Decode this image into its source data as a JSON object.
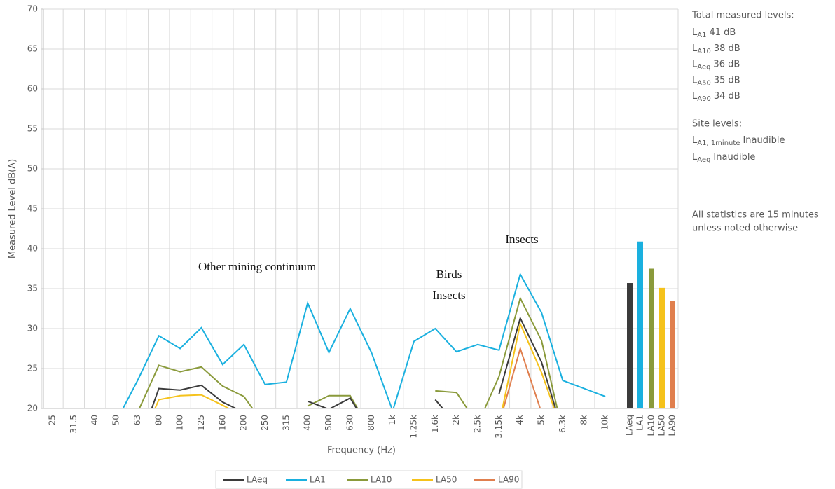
{
  "chart_data": {
    "type": "line",
    "y_label": "Measured Level dB(A)",
    "x_label": "Frequency (Hz)",
    "ylim": [
      20,
      70
    ],
    "yticks": [
      20,
      25,
      30,
      35,
      40,
      45,
      50,
      55,
      60,
      65,
      70
    ],
    "grid": true,
    "categories": [
      "25",
      "31.5",
      "40",
      "50",
      "63",
      "80",
      "100",
      "125",
      "160",
      "200",
      "250",
      "315",
      "400",
      "500",
      "630",
      "800",
      "1k",
      "1.25k",
      "1.6k",
      "2k",
      "2.5k",
      "3.15k",
      "4k",
      "5k",
      "6.3k",
      "8k",
      "10k"
    ],
    "series": [
      {
        "name": "LAeq",
        "color": "#3b3b3b",
        "values": [
          null,
          null,
          null,
          null,
          15,
          22.5,
          22.3,
          22.9,
          20.8,
          19.5,
          null,
          null,
          20.9,
          19.9,
          21.3,
          17,
          null,
          null,
          21.1,
          18,
          null,
          21.8,
          31.3,
          25.8,
          17,
          null,
          null
        ]
      },
      {
        "name": "LA1",
        "color": "#1ab0df",
        "values": [
          null,
          null,
          null,
          18.4,
          23.5,
          29.1,
          27.5,
          30.1,
          25.5,
          28,
          23,
          23.3,
          33.2,
          27,
          32.5,
          27,
          19.7,
          28.4,
          30,
          27.1,
          28,
          27.3,
          36.8,
          32,
          23.5,
          22.5,
          21.5
        ]
      },
      {
        "name": "LA10",
        "color": "#8a9a3b",
        "values": [
          null,
          null,
          null,
          null,
          19.5,
          25.4,
          24.6,
          25.2,
          22.8,
          21.5,
          17.8,
          null,
          20.3,
          21.6,
          21.6,
          17,
          null,
          null,
          22.2,
          22,
          18,
          24,
          33.8,
          28.5,
          17,
          null,
          null
        ]
      },
      {
        "name": "LA50",
        "color": "#f5c21b",
        "values": [
          null,
          null,
          null,
          null,
          15,
          21.1,
          21.6,
          21.7,
          20.4,
          19,
          null,
          null,
          null,
          null,
          null,
          null,
          null,
          null,
          null,
          null,
          null,
          18,
          30.6,
          24.5,
          17,
          null,
          null
        ]
      },
      {
        "name": "LA90",
        "color": "#e07f4e",
        "values": [
          null,
          null,
          null,
          null,
          null,
          null,
          null,
          null,
          null,
          null,
          null,
          null,
          null,
          null,
          null,
          null,
          null,
          null,
          null,
          null,
          null,
          18,
          27.5,
          19.5,
          null,
          null,
          null
        ]
      }
    ],
    "totals": {
      "type": "bar",
      "categories": [
        "LAeq",
        "LA1",
        "LA10",
        "LA50",
        "LA90"
      ],
      "values": [
        35.7,
        40.9,
        37.5,
        35.1,
        33.5
      ]
    },
    "annotations": [
      "Other mining continuum",
      "Birds",
      "Insects",
      "Insects"
    ]
  },
  "side_panel": {
    "total_title": "Total measured levels:",
    "total_items": [
      {
        "prefix": "L",
        "sub": "A1",
        "text": "41 dB"
      },
      {
        "prefix": "L",
        "sub": "A10",
        "text": "38 dB"
      },
      {
        "prefix": "L",
        "sub": "Aeq",
        "text": "36 dB"
      },
      {
        "prefix": "L",
        "sub": "A50",
        "text": "35 dB"
      },
      {
        "prefix": "L",
        "sub": "A90",
        "text": "34 dB"
      }
    ],
    "site_title": "Site levels:",
    "site_items": [
      {
        "prefix": "L",
        "sub": "A1, 1minute",
        "text": "Inaudible"
      },
      {
        "prefix": "L",
        "sub": "Aeq",
        "text": "Inaudible"
      }
    ],
    "note_lines": [
      "All statistics are 15 minutes",
      "unless noted otherwise"
    ]
  }
}
